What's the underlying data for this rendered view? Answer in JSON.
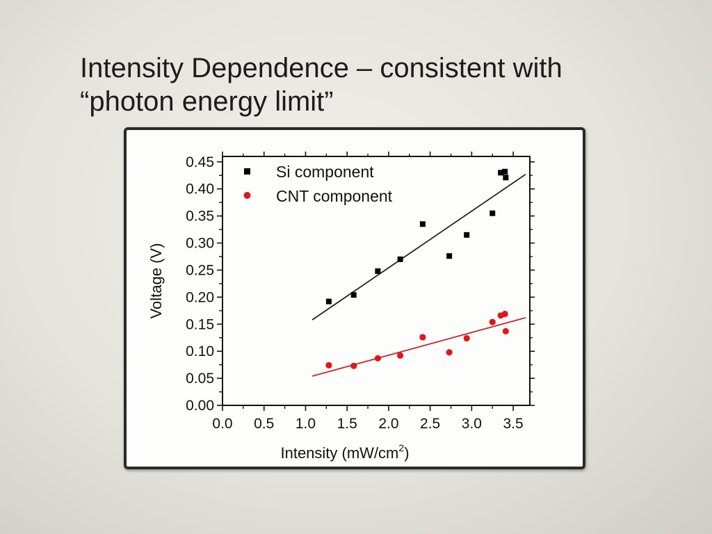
{
  "slide": {
    "title_line1": "Intensity Dependence – consistent with",
    "title_line2": "“photon energy limit”"
  },
  "chart_data": {
    "type": "scatter",
    "xlabel": "Intensity (mW/cm",
    "xlabel_sup": "2",
    "xlabel_end": ")",
    "ylabel": "Voltage (V)",
    "xlim": [
      0.0,
      3.7
    ],
    "ylim": [
      0.0,
      0.46
    ],
    "x_ticks": [
      "0.0",
      "0.5",
      "1.0",
      "1.5",
      "2.0",
      "2.5",
      "3.0",
      "3.5"
    ],
    "y_ticks": [
      "0.00",
      "0.05",
      "0.10",
      "0.15",
      "0.20",
      "0.25",
      "0.30",
      "0.35",
      "0.40",
      "0.45"
    ],
    "legend_position": "top-left",
    "series": [
      {
        "name": "Si component",
        "marker": "square",
        "color": "#000000",
        "x": [
          1.28,
          1.58,
          1.87,
          2.14,
          2.41,
          2.73,
          2.94,
          3.25,
          3.35,
          3.4,
          3.41
        ],
        "y": [
          0.192,
          0.204,
          0.248,
          0.27,
          0.335,
          0.276,
          0.315,
          0.355,
          0.43,
          0.432,
          0.421
        ],
        "fit": {
          "x": [
            1.08,
            3.65
          ],
          "y": [
            0.158,
            0.427
          ],
          "color": "#222222"
        }
      },
      {
        "name": "CNT component",
        "marker": "circle",
        "color": "#e0161b",
        "x": [
          1.28,
          1.58,
          1.87,
          2.14,
          2.41,
          2.73,
          2.94,
          3.25,
          3.35,
          3.4,
          3.41
        ],
        "y": [
          0.074,
          0.073,
          0.087,
          0.092,
          0.126,
          0.098,
          0.124,
          0.154,
          0.166,
          0.169,
          0.137
        ],
        "fit": {
          "x": [
            1.08,
            3.65
          ],
          "y": [
            0.054,
            0.162
          ],
          "color": "#c0282c"
        }
      }
    ]
  }
}
